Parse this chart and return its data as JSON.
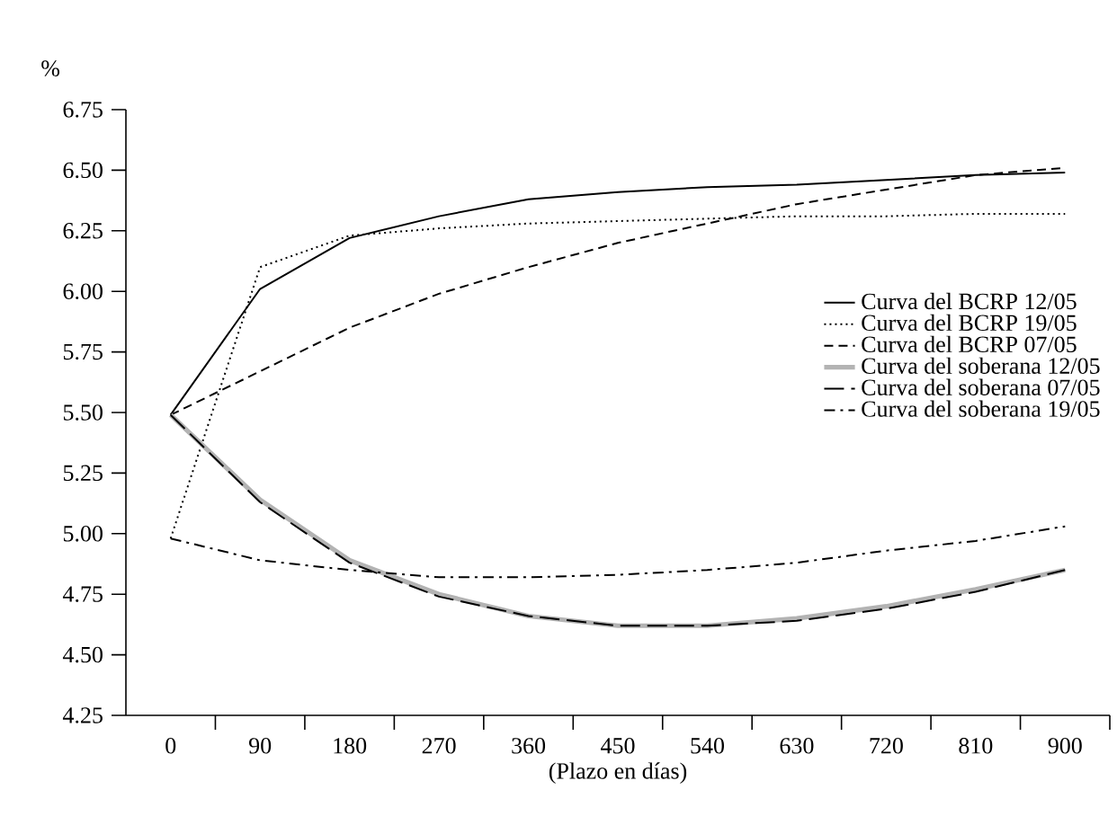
{
  "chart_data": {
    "type": "line",
    "xlabel": "(Plazo en días)",
    "ylabel": "%",
    "categories": [
      "0",
      "90",
      "180",
      "270",
      "360",
      "450",
      "540",
      "630",
      "720",
      "810",
      "900"
    ],
    "ylim": [
      4.25,
      6.75
    ],
    "yticks": [
      {
        "value": 4.25,
        "label": "4.25"
      },
      {
        "value": 4.5,
        "label": "4.50"
      },
      {
        "value": 4.75,
        "label": "4.75"
      },
      {
        "value": 5,
        "label": "5.00"
      },
      {
        "value": 5.25,
        "label": "5.25"
      },
      {
        "value": 5.5,
        "label": "5.50"
      },
      {
        "value": 5.75,
        "label": "5.75"
      },
      {
        "value": 6,
        "label": "6.00"
      },
      {
        "value": 6.25,
        "label": "6.25"
      },
      {
        "value": 6.5,
        "label": "6.50"
      },
      {
        "value": 6.75,
        "label": "6.75"
      }
    ],
    "legend": "right",
    "grid": false,
    "series": [
      {
        "name": "Curva del BCRP 12/05",
        "color": "#000000",
        "line_style": "solid",
        "values": [
          5.49,
          6.01,
          6.22,
          6.31,
          6.38,
          6.41,
          6.43,
          6.44,
          6.46,
          6.48,
          6.49
        ]
      },
      {
        "name": "Curva del BCRP 19/05",
        "color": "#000000",
        "line_style": "dotted",
        "values": [
          4.98,
          6.1,
          6.23,
          6.26,
          6.28,
          6.29,
          6.3,
          6.31,
          6.31,
          6.32,
          6.32
        ]
      },
      {
        "name": "Curva del BCRP 07/05",
        "color": "#000000",
        "line_style": "dashed",
        "values": [
          5.49,
          5.67,
          5.85,
          5.99,
          6.1,
          6.2,
          6.28,
          6.36,
          6.42,
          6.48,
          6.51
        ]
      },
      {
        "name": "Curva del soberana 12/05",
        "color": "#b3b3b3",
        "line_style": "solid",
        "values": [
          5.49,
          5.14,
          4.89,
          4.75,
          4.66,
          4.62,
          4.62,
          4.65,
          4.7,
          4.77,
          4.85
        ]
      },
      {
        "name": "Curva del soberana 07/05",
        "color": "#000000",
        "line_style": "longdash",
        "values": [
          5.49,
          5.13,
          4.88,
          4.74,
          4.66,
          4.62,
          4.62,
          4.64,
          4.69,
          4.76,
          4.85
        ]
      },
      {
        "name": "Curva del soberana 19/05",
        "color": "#000000",
        "line_style": "dashdot",
        "values": [
          4.98,
          4.89,
          4.85,
          4.82,
          4.82,
          4.83,
          4.85,
          4.88,
          4.93,
          4.97,
          5.03
        ]
      }
    ]
  }
}
